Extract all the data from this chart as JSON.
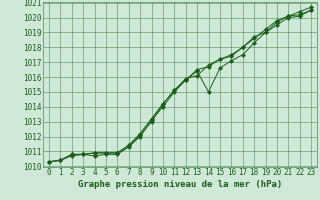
{
  "title": "Graphe pression niveau de la mer (hPa)",
  "background_color": "#d0e8d8",
  "grid_color": "#4d8a5a",
  "line_color": "#1a5e1a",
  "x_min": 0,
  "x_max": 23,
  "y_min": 1010,
  "y_max": 1021,
  "y_ticks": [
    1010,
    1011,
    1012,
    1013,
    1014,
    1015,
    1016,
    1017,
    1018,
    1019,
    1020,
    1021
  ],
  "x_ticks": [
    0,
    1,
    2,
    3,
    4,
    5,
    6,
    7,
    8,
    9,
    10,
    11,
    12,
    13,
    14,
    15,
    16,
    17,
    18,
    19,
    20,
    21,
    22,
    23
  ],
  "series": [
    [
      1010.3,
      1010.4,
      1010.7,
      1010.8,
      1010.7,
      1010.8,
      1010.8,
      1011.3,
      1012.0,
      1013.1,
      1014.0,
      1015.0,
      1015.8,
      1016.4,
      1015.0,
      1016.6,
      1017.1,
      1017.5,
      1018.3,
      1019.0,
      1019.7,
      1020.1,
      1020.2,
      1020.5
    ],
    [
      1010.3,
      1010.4,
      1010.8,
      1010.8,
      1010.9,
      1010.9,
      1010.9,
      1011.4,
      1012.2,
      1013.2,
      1014.2,
      1015.1,
      1015.9,
      1016.1,
      1016.8,
      1017.2,
      1017.5,
      1018.0,
      1018.6,
      1019.2,
      1019.8,
      1020.1,
      1020.4,
      1020.7
    ],
    [
      1010.3,
      1010.4,
      1010.8,
      1010.8,
      1010.9,
      1010.9,
      1010.9,
      1011.4,
      1012.1,
      1013.0,
      1014.2,
      1015.1,
      1015.8,
      1016.5,
      1016.7,
      1017.2,
      1017.4,
      1018.0,
      1018.7,
      1019.0,
      1019.5,
      1020.0,
      1020.1,
      1020.5
    ]
  ],
  "tick_fontsize": 5.5,
  "xlabel_fontsize": 6.5
}
